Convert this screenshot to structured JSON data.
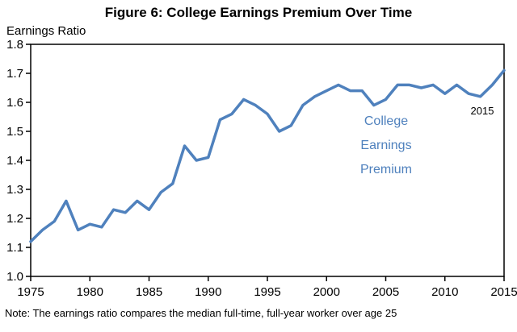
{
  "title": "Figure 6: College Earnings Premium Over Time",
  "y_axis_title": "Earnings Ratio",
  "annotation": {
    "lines": [
      "College",
      "Earnings",
      "Premium"
    ],
    "end_label": "2015"
  },
  "note": "Note: The earnings ratio compares the median full-time, full-year worker over age 25",
  "colors": {
    "line": "#4f81bd",
    "annotation": "#4f81bd",
    "axis": "#000000"
  },
  "chart_data": {
    "type": "line",
    "title": "Figure 6: College Earnings Premium Over Time",
    "xlabel": "",
    "ylabel": "Earnings Ratio",
    "xlim": [
      1975,
      2015
    ],
    "ylim": [
      1.0,
      1.8
    ],
    "x_ticks": [
      1975,
      1980,
      1985,
      1990,
      1995,
      2000,
      2005,
      2010,
      2015
    ],
    "y_ticks": [
      1.0,
      1.1,
      1.2,
      1.3,
      1.4,
      1.5,
      1.6,
      1.7,
      1.8
    ],
    "grid": false,
    "legend": "none",
    "x": [
      1975,
      1976,
      1977,
      1978,
      1979,
      1980,
      1981,
      1982,
      1983,
      1984,
      1985,
      1986,
      1987,
      1988,
      1989,
      1990,
      1991,
      1992,
      1993,
      1994,
      1995,
      1996,
      1997,
      1998,
      1999,
      2000,
      2001,
      2002,
      2003,
      2004,
      2005,
      2006,
      2007,
      2008,
      2009,
      2010,
      2011,
      2012,
      2013,
      2014,
      2015
    ],
    "series": [
      {
        "name": "College Earnings Premium",
        "values": [
          1.12,
          1.16,
          1.19,
          1.26,
          1.16,
          1.18,
          1.17,
          1.23,
          1.22,
          1.26,
          1.23,
          1.29,
          1.32,
          1.45,
          1.4,
          1.41,
          1.54,
          1.56,
          1.61,
          1.59,
          1.56,
          1.5,
          1.52,
          1.59,
          1.62,
          1.64,
          1.66,
          1.64,
          1.64,
          1.59,
          1.61,
          1.66,
          1.66,
          1.65,
          1.66,
          1.63,
          1.66,
          1.63,
          1.62,
          1.66,
          1.71
        ]
      }
    ]
  }
}
